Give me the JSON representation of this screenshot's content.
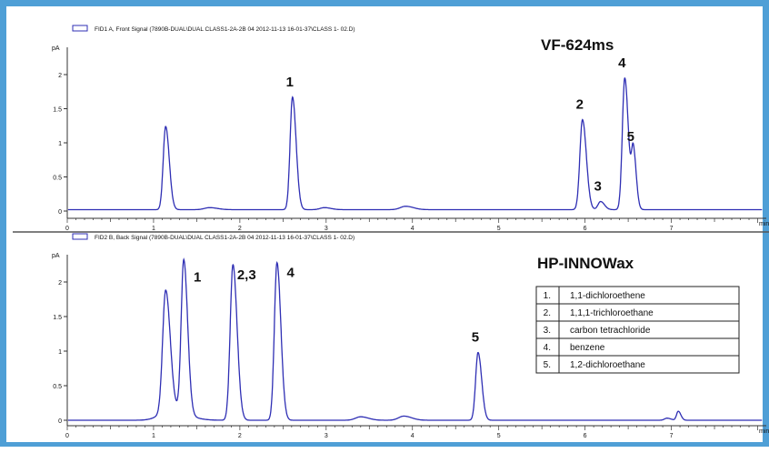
{
  "colors": {
    "frame": "#4f9fd6",
    "trace": "#2f2fb4",
    "axis": "#333333",
    "divider": "#555555"
  },
  "legend_icon": "signal-legend-icon",
  "chart_data": [
    {
      "type": "line",
      "header": "FID1 A, Front Signal (7890B-DUAL\\DUAL CLASS1-2A-2B 04 2012-11-13 16-01-37\\CLASS 1- 02.D)",
      "column_label": "VF-624ms",
      "ylabel": "pA",
      "xunit": "min",
      "xlim": [
        0,
        8.1
      ],
      "ylim": [
        -0.05,
        2.2
      ],
      "x_ticks": [
        0,
        1,
        2,
        3,
        4,
        5,
        6,
        7
      ],
      "y_ticks": [
        0,
        0.5,
        1,
        1.5,
        2
      ],
      "y_tick_labels": [
        "0",
        "0.5",
        "1",
        "1.5",
        "2"
      ],
      "baseline": 0.02,
      "peaks": [
        {
          "x": 1.14,
          "height": 1.22,
          "width": 0.028,
          "label": ""
        },
        {
          "x": 1.65,
          "height": 0.03,
          "width": 0.06,
          "label": ""
        },
        {
          "x": 2.61,
          "height": 1.65,
          "width": 0.028,
          "label": "1"
        },
        {
          "x": 2.98,
          "height": 0.03,
          "width": 0.05,
          "label": ""
        },
        {
          "x": 3.92,
          "height": 0.05,
          "width": 0.06,
          "label": ""
        },
        {
          "x": 5.97,
          "height": 1.32,
          "width": 0.03,
          "label": "2"
        },
        {
          "x": 6.18,
          "height": 0.12,
          "width": 0.03,
          "label": "3"
        },
        {
          "x": 6.46,
          "height": 1.93,
          "width": 0.028,
          "label": "4"
        },
        {
          "x": 6.56,
          "height": 0.85,
          "width": 0.022,
          "label": "5"
        }
      ]
    },
    {
      "type": "line",
      "header": "FID2 B, Back Signal (7890B-DUAL\\DUAL CLASS1-2A-2B 04 2012-11-13 16-01-37\\CLASS 1- 02.D)",
      "column_label": "HP-INNOWax",
      "ylabel": "pA",
      "xunit": "min",
      "xlim": [
        0,
        8.1
      ],
      "ylim": [
        -0.05,
        2.3
      ],
      "x_ticks": [
        0,
        1,
        2,
        3,
        4,
        5,
        6,
        7
      ],
      "y_ticks": [
        0,
        0.5,
        1,
        1.5,
        2
      ],
      "y_tick_labels": [
        "0",
        "0.5",
        "1",
        "1.5",
        "2"
      ],
      "baseline": 0.0,
      "peaks": [
        {
          "x": 1.14,
          "height": 1.75,
          "width": 0.035,
          "label": ""
        },
        {
          "x": 1.2,
          "height": 0.15,
          "width": 0.12,
          "label": ""
        },
        {
          "x": 1.35,
          "height": 2.22,
          "width": 0.03,
          "label": "1"
        },
        {
          "x": 1.92,
          "height": 2.25,
          "width": 0.032,
          "label": "2,3"
        },
        {
          "x": 2.43,
          "height": 2.28,
          "width": 0.03,
          "label": "4"
        },
        {
          "x": 3.4,
          "height": 0.05,
          "width": 0.06,
          "label": ""
        },
        {
          "x": 3.9,
          "height": 0.06,
          "width": 0.06,
          "label": ""
        },
        {
          "x": 4.76,
          "height": 0.98,
          "width": 0.028,
          "label": "5"
        },
        {
          "x": 6.95,
          "height": 0.03,
          "width": 0.03,
          "label": ""
        },
        {
          "x": 7.08,
          "height": 0.13,
          "width": 0.02,
          "label": ""
        }
      ]
    }
  ],
  "compound_table": [
    {
      "num": "1.",
      "name": "1,1-dichloroethene"
    },
    {
      "num": "2.",
      "name": "1,1,1-trichloroethane"
    },
    {
      "num": "3.",
      "name": "carbon tetrachloride"
    },
    {
      "num": "4.",
      "name": "benzene"
    },
    {
      "num": "5.",
      "name": "1,2-dichloroethane"
    }
  ]
}
